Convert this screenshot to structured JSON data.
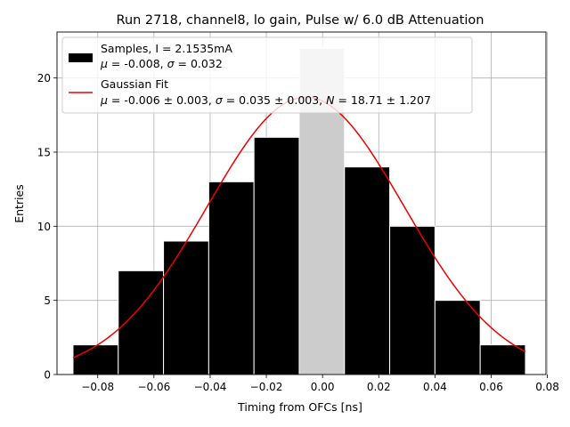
{
  "chart_data": {
    "type": "bar",
    "title": "Run 2718, channel8, lo gain, Pulse w/ 6.0 dB Attenuation",
    "xlabel": "Timing from OFCs [ns]",
    "ylabel": "Entries",
    "xlim": [
      -0.0945,
      0.0795
    ],
    "ylim": [
      0,
      23.1
    ],
    "grid": true,
    "xticks": [
      -0.08,
      -0.06,
      -0.04,
      -0.02,
      0.0,
      0.02,
      0.04,
      0.06,
      0.08
    ],
    "xtick_labels": [
      "−0.08",
      "−0.06",
      "−0.04",
      "−0.02",
      "0.00",
      "0.02",
      "0.04",
      "0.06",
      "0.08"
    ],
    "yticks": [
      0,
      5,
      10,
      15,
      20
    ],
    "ytick_labels": [
      "0",
      "5",
      "10",
      "15",
      "20"
    ],
    "histogram": {
      "name": "Samples",
      "bin_edges": [
        -0.0888,
        -0.0727,
        -0.0566,
        -0.0405,
        -0.0244,
        -0.0083,
        0.0078,
        0.0239,
        0.04,
        0.0561,
        0.0722
      ],
      "counts": [
        2,
        7,
        9,
        13,
        16,
        22,
        14,
        10,
        5,
        2
      ],
      "color": "#000000",
      "highlight_bin": 5,
      "highlight_color": "#cccccc"
    },
    "fit": {
      "name": "Gaussian Fit",
      "mu": -0.006,
      "sigma": 0.035,
      "N": 18.71,
      "x_range": [
        -0.0888,
        0.0722
      ],
      "color": "#ee0000"
    },
    "legend": {
      "position": "top-left",
      "samples_line1": "Samples, I = 2.1535mA",
      "samples_line2_mu": "μ",
      "samples_line2_mu_val": " = -0.008, ",
      "samples_line2_sigma": "σ",
      "samples_line2_sigma_val": " = 0.032",
      "fit_line1": "Gaussian Fit",
      "fit_line2_mu": "μ",
      "fit_line2_mu_val": " = -0.006 ± 0.003, ",
      "fit_line2_sigma": "σ",
      "fit_line2_sigma_val": " = 0.035 ± 0.003, ",
      "fit_line2_N": "N",
      "fit_line2_N_val": " = 18.71 ± 1.207"
    }
  }
}
